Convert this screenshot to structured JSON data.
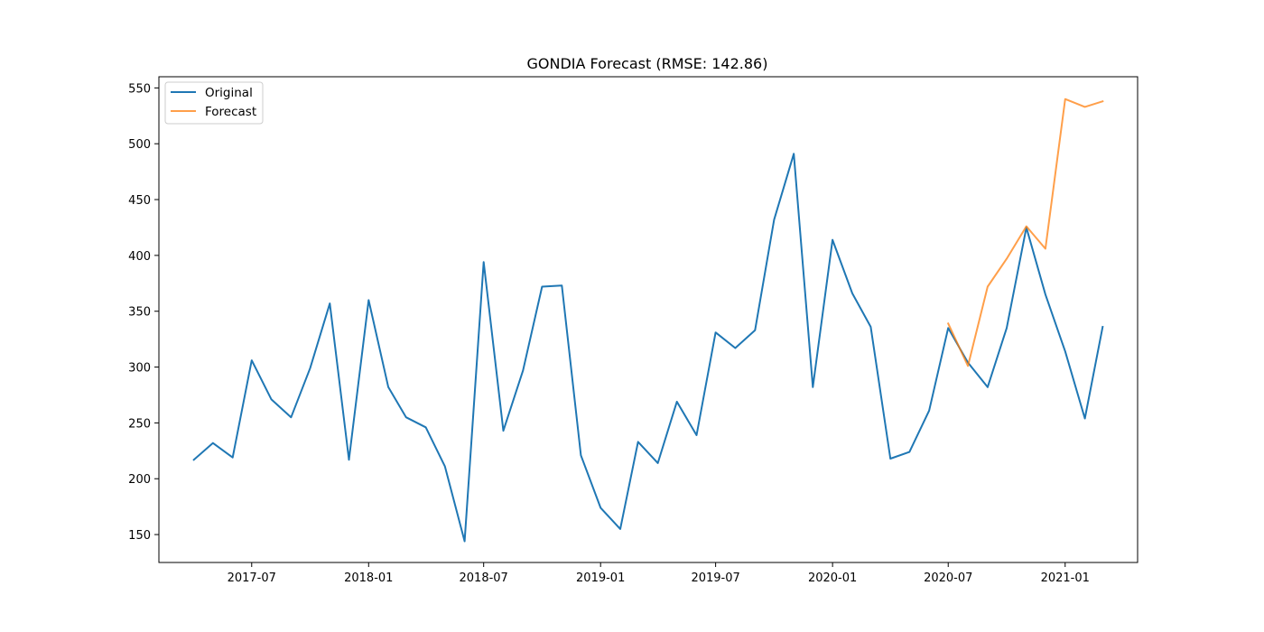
{
  "chart_data": {
    "type": "line",
    "title": "GONDIA Forecast (RMSE: 142.86)",
    "xlabel": "",
    "ylabel": "",
    "x_axis_type": "date",
    "xlim": [
      "2017-02-05",
      "2021-04-25"
    ],
    "ylim": [
      125,
      560
    ],
    "x_ticks": [
      "2017-07",
      "2018-01",
      "2018-07",
      "2019-01",
      "2019-07",
      "2020-01",
      "2020-07",
      "2021-01"
    ],
    "y_ticks": [
      150,
      200,
      250,
      300,
      350,
      400,
      450,
      500,
      550
    ],
    "grid": false,
    "legend": {
      "position": "top-left",
      "entries": [
        "Original",
        "Forecast"
      ]
    },
    "series": [
      {
        "name": "Original",
        "color": "#1f77b4",
        "x": [
          "2017-04-01",
          "2017-05-01",
          "2017-06-01",
          "2017-07-01",
          "2017-08-01",
          "2017-09-01",
          "2017-10-01",
          "2017-11-01",
          "2017-12-01",
          "2018-01-01",
          "2018-02-01",
          "2018-03-01",
          "2018-04-01",
          "2018-05-01",
          "2018-06-01",
          "2018-07-01",
          "2018-08-01",
          "2018-09-01",
          "2018-10-01",
          "2018-11-01",
          "2018-12-01",
          "2019-01-01",
          "2019-02-01",
          "2019-03-01",
          "2019-04-01",
          "2019-05-01",
          "2019-06-01",
          "2019-07-01",
          "2019-08-01",
          "2019-09-01",
          "2019-10-01",
          "2019-11-01",
          "2019-12-01",
          "2020-01-01",
          "2020-02-01",
          "2020-03-01",
          "2020-04-01",
          "2020-05-01",
          "2020-06-01",
          "2020-07-01",
          "2020-08-01",
          "2020-09-01",
          "2020-10-01",
          "2020-11-01",
          "2020-12-01",
          "2021-01-01",
          "2021-02-01",
          "2021-03-01"
        ],
        "values": [
          217,
          232,
          219,
          306,
          271,
          255,
          299,
          357,
          217,
          360,
          282,
          255,
          246,
          211,
          144,
          394,
          243,
          297,
          372,
          373,
          221,
          174,
          155,
          233,
          214,
          269,
          239,
          331,
          317,
          333,
          432,
          491,
          282,
          414,
          366,
          336,
          218,
          224,
          261,
          335,
          304,
          282,
          335,
          425,
          365,
          314,
          254,
          336
        ]
      },
      {
        "name": "Forecast",
        "color": "#ff7f0e",
        "x": [
          "2020-07-01",
          "2020-08-01",
          "2020-09-01",
          "2020-10-01",
          "2020-11-01",
          "2020-12-01",
          "2021-01-01",
          "2021-02-01",
          "2021-03-01"
        ],
        "values": [
          339,
          301,
          372,
          397,
          426,
          406,
          540,
          533,
          538
        ]
      }
    ]
  }
}
